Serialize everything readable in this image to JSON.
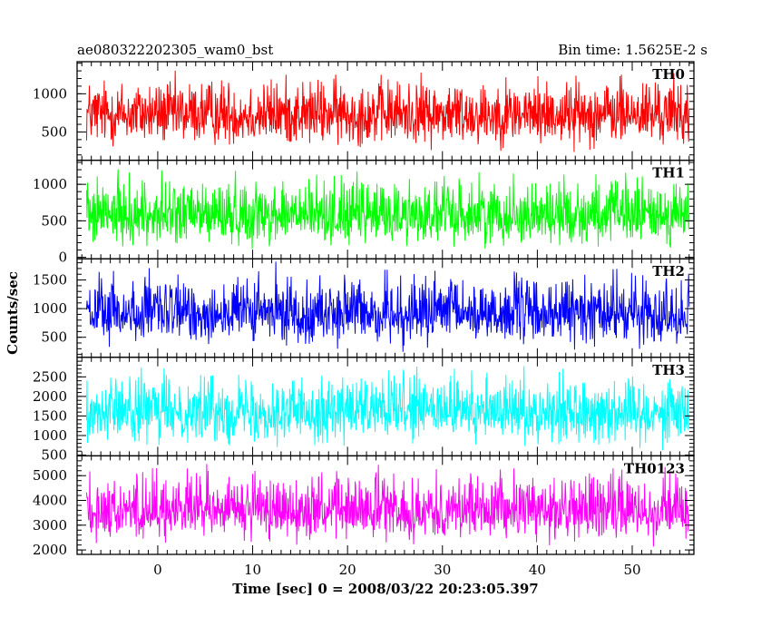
{
  "header": {
    "title": "ae080322202305_wam0_bst",
    "bin_time": "Bin time: 1.5625E-2 s"
  },
  "chart_data": {
    "type": "line",
    "title": "ae080322202305_wam0_bst",
    "xlabel": "Time [sec] 0 = 2008/03/22 20:23:05.397",
    "ylabel": "Counts/sec",
    "xlim": [
      -8.5,
      56.5
    ],
    "xticks": [
      0,
      10,
      20,
      30,
      40,
      50
    ],
    "data_x_range": [
      -7.5,
      56.0
    ],
    "grid": false,
    "legend": "none",
    "panels": [
      {
        "name": "TH0",
        "color": "#ff0000",
        "ylim": [
          130,
          1420
        ],
        "yticks": [
          500,
          1000
        ],
        "mean": 720,
        "low": 180,
        "high": 1400
      },
      {
        "name": "TH1",
        "color": "#00ff00",
        "ylim": [
          -20,
          1330
        ],
        "yticks": [
          0,
          500,
          1000
        ],
        "mean": 560,
        "low": 40,
        "high": 1320
      },
      {
        "name": "TH2",
        "color": "#0000ff",
        "ylim": [
          150,
          1870
        ],
        "yticks": [
          500,
          1000,
          1500
        ],
        "mean": 900,
        "low": 200,
        "high": 1850
      },
      {
        "name": "TH3",
        "color": "#00ffff",
        "ylim": [
          480,
          3000
        ],
        "yticks": [
          500,
          1000,
          1500,
          2000,
          2500
        ],
        "mean": 1600,
        "low": 540,
        "high": 2950
      },
      {
        "name": "TH0123",
        "color": "#ff00ff",
        "ylim": [
          1820,
          5800
        ],
        "yticks": [
          2000,
          3000,
          4000,
          5000
        ],
        "mean": 3600,
        "low": 1950,
        "high": 5700
      }
    ]
  }
}
